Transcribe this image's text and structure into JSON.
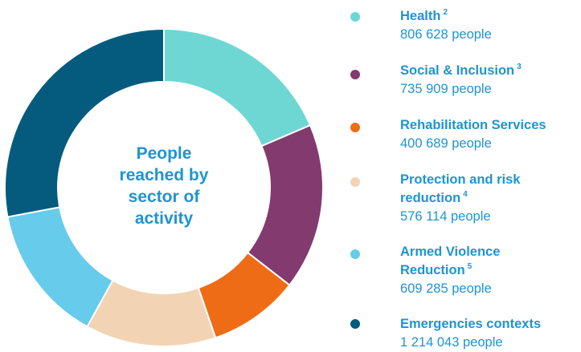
{
  "chart_data": {
    "type": "pie",
    "variant": "donut",
    "title": [
      "People",
      "reached by",
      "sector of",
      "activity"
    ],
    "series": [
      {
        "name": "Health",
        "note": "2",
        "value": 806628,
        "value_text": "806 628 people",
        "color": "#6ed7d3"
      },
      {
        "name": "Social & Inclusion",
        "note": "3",
        "value": 735909,
        "value_text": "735 909 people",
        "color": "#823a6f"
      },
      {
        "name": "Rehabilitation Services",
        "note": "",
        "value": 400689,
        "value_text": "400 689 people",
        "color": "#ef6c16"
      },
      {
        "name": "Protection and risk reduction",
        "label_lines": [
          "Protection and risk",
          "reduction"
        ],
        "note": "4",
        "value": 576114,
        "value_text": "576 114 people",
        "color": "#f2d4b4"
      },
      {
        "name": "Armed Violence Reduction",
        "label_lines": [
          "Armed Violence",
          "Reduction"
        ],
        "note": "5",
        "value": 609285,
        "value_text": "609 285 people",
        "color": "#67cbeb"
      },
      {
        "name": "Emergencies contexts",
        "note": "",
        "value": 1214043,
        "value_text": "1 214 043 people",
        "color": "#045b7d"
      }
    ],
    "legend_position": "right"
  }
}
